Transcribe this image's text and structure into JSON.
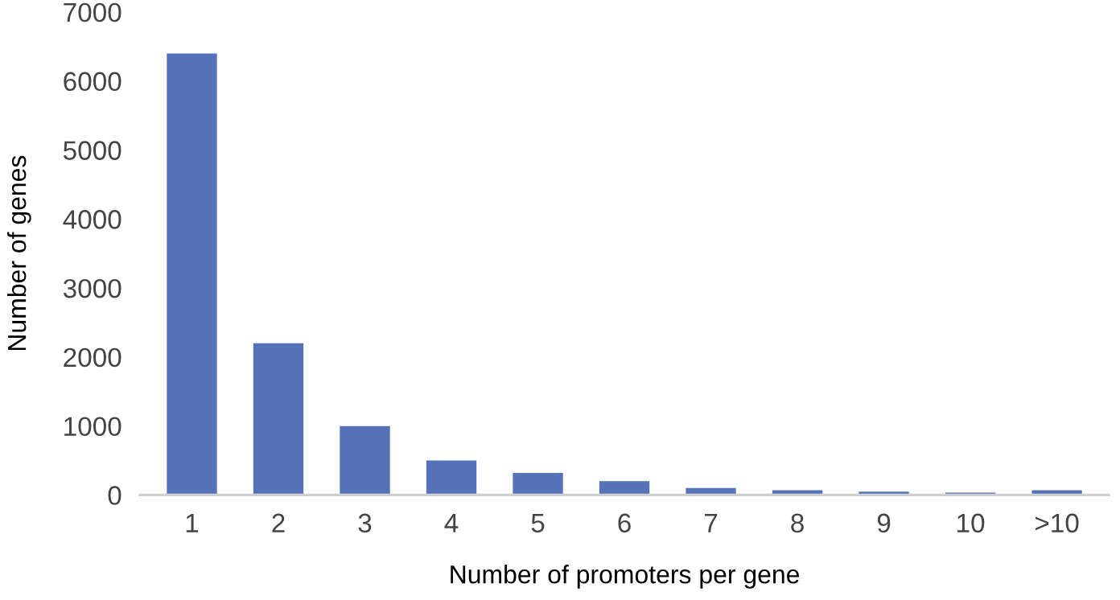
{
  "chart_data": {
    "type": "bar",
    "xlabel": "Number of promoters per gene",
    "ylabel": "Number of genes",
    "categories": [
      "1",
      "2",
      "3",
      "4",
      "5",
      "6",
      "7",
      "8",
      "9",
      "10",
      ">10"
    ],
    "values": [
      6400,
      2200,
      1000,
      500,
      320,
      200,
      100,
      70,
      50,
      35,
      70
    ],
    "color": "#5672b8",
    "ylim": [
      0,
      7000
    ],
    "yticks": [
      0,
      1000,
      2000,
      3000,
      4000,
      5000,
      6000,
      7000
    ],
    "grid": false,
    "legend": false
  }
}
